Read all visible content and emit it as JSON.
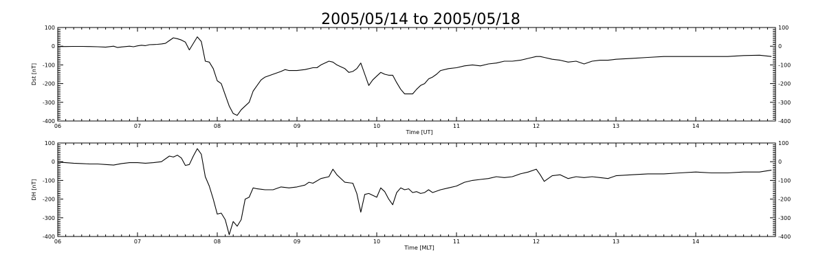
{
  "figure": {
    "title": "2005/05/14 to 2005/05/18"
  },
  "chart_data": [
    {
      "type": "line",
      "ylabel": "Dst [nT]",
      "xlabel": "Time [UT]",
      "x_tick_labels": [
        "06",
        "07",
        "08",
        "09",
        "10",
        "11",
        "12",
        "13",
        "14"
      ],
      "x_tick_values": [
        6,
        7,
        8,
        9,
        10,
        11,
        12,
        13,
        14
      ],
      "xlim": [
        6,
        15
      ],
      "ylim": [
        -400,
        100
      ],
      "y_ticks": [
        -400,
        -300,
        -200,
        -100,
        0,
        100
      ],
      "y_tick_labels": [
        "-400",
        "-300",
        "-200",
        "-100",
        "0",
        "100"
      ],
      "grid": false,
      "x": [
        6.0,
        6.1,
        6.2,
        6.3,
        6.4,
        6.5,
        6.6,
        6.7,
        6.75,
        6.8,
        6.9,
        6.95,
        7.0,
        7.05,
        7.1,
        7.15,
        7.2,
        7.25,
        7.3,
        7.35,
        7.4,
        7.45,
        7.5,
        7.55,
        7.6,
        7.65,
        7.7,
        7.75,
        7.8,
        7.85,
        7.9,
        7.95,
        8.0,
        8.05,
        8.1,
        8.15,
        8.2,
        8.25,
        8.3,
        8.35,
        8.4,
        8.45,
        8.5,
        8.55,
        8.6,
        8.7,
        8.8,
        8.85,
        8.9,
        9.0,
        9.1,
        9.2,
        9.25,
        9.3,
        9.4,
        9.45,
        9.5,
        9.55,
        9.6,
        9.65,
        9.7,
        9.75,
        9.8,
        9.85,
        9.9,
        9.95,
        10.0,
        10.05,
        10.1,
        10.15,
        10.2,
        10.25,
        10.3,
        10.35,
        10.4,
        10.45,
        10.5,
        10.55,
        10.6,
        10.65,
        10.7,
        10.75,
        10.8,
        10.9,
        11.0,
        11.1,
        11.2,
        11.3,
        11.4,
        11.5,
        11.6,
        11.7,
        11.8,
        11.9,
        12.0,
        12.05,
        12.1,
        12.2,
        12.3,
        12.4,
        12.5,
        12.6,
        12.7,
        12.8,
        12.9,
        13.0,
        13.2,
        13.4,
        13.6,
        13.8,
        14.0,
        14.2,
        14.4,
        14.6,
        14.8,
        14.95
      ],
      "y": [
        -2,
        -2,
        -1,
        -1,
        -2,
        -3,
        -5,
        0,
        -7,
        -4,
        0,
        -3,
        2,
        5,
        3,
        8,
        9,
        10,
        12,
        15,
        30,
        45,
        40,
        33,
        22,
        -20,
        15,
        50,
        25,
        -80,
        -85,
        -120,
        -185,
        -200,
        -260,
        -320,
        -360,
        -370,
        -340,
        -320,
        -300,
        -240,
        -210,
        -180,
        -165,
        -150,
        -135,
        -125,
        -130,
        -130,
        -125,
        -115,
        -115,
        -100,
        -80,
        -85,
        -100,
        -110,
        -120,
        -140,
        -135,
        -120,
        -90,
        -150,
        -210,
        -180,
        -160,
        -140,
        -150,
        -155,
        -155,
        -195,
        -230,
        -255,
        -255,
        -255,
        -230,
        -210,
        -200,
        -175,
        -165,
        -150,
        -130,
        -120,
        -115,
        -105,
        -100,
        -105,
        -95,
        -90,
        -80,
        -80,
        -75,
        -65,
        -55,
        -55,
        -60,
        -70,
        -75,
        -85,
        -80,
        -95,
        -80,
        -75,
        -75,
        -70,
        -65,
        -60,
        -55,
        -55,
        -55,
        -55,
        -55,
        -50,
        -48,
        -55
      ]
    },
    {
      "type": "line",
      "ylabel": "DH [nT]",
      "xlabel": "Time [MLT]",
      "x_tick_labels": [
        "06",
        "07",
        "08",
        "09",
        "10",
        "11",
        "12",
        "13",
        "14"
      ],
      "x_tick_values": [
        6,
        7,
        8,
        9,
        10,
        11,
        12,
        13,
        14
      ],
      "xlim": [
        6,
        15
      ],
      "ylim": [
        -400,
        100
      ],
      "y_ticks": [
        -400,
        -300,
        -200,
        -100,
        0,
        100
      ],
      "y_tick_labels": [
        "-400",
        "-300",
        "-200",
        "-100",
        "0",
        "100"
      ],
      "grid": false,
      "x": [
        6.0,
        6.1,
        6.2,
        6.3,
        6.4,
        6.5,
        6.6,
        6.7,
        6.8,
        6.9,
        7.0,
        7.1,
        7.2,
        7.3,
        7.4,
        7.45,
        7.5,
        7.55,
        7.6,
        7.65,
        7.7,
        7.75,
        7.8,
        7.85,
        7.9,
        7.95,
        8.0,
        8.05,
        8.1,
        8.15,
        8.2,
        8.25,
        8.3,
        8.35,
        8.4,
        8.45,
        8.5,
        8.6,
        8.7,
        8.8,
        8.9,
        9.0,
        9.1,
        9.15,
        9.2,
        9.3,
        9.4,
        9.45,
        9.5,
        9.6,
        9.7,
        9.75,
        9.8,
        9.85,
        9.9,
        10.0,
        10.05,
        10.1,
        10.15,
        10.2,
        10.25,
        10.3,
        10.35,
        10.4,
        10.45,
        10.5,
        10.55,
        10.6,
        10.65,
        10.7,
        10.8,
        10.9,
        11.0,
        11.1,
        11.2,
        11.3,
        11.4,
        11.5,
        11.6,
        11.7,
        11.8,
        11.9,
        12.0,
        12.05,
        12.1,
        12.2,
        12.3,
        12.4,
        12.5,
        12.6,
        12.7,
        12.8,
        12.9,
        13.0,
        13.2,
        13.4,
        13.6,
        13.8,
        14.0,
        14.2,
        14.4,
        14.6,
        14.8,
        14.95
      ],
      "y": [
        -2,
        -5,
        -8,
        -10,
        -12,
        -12,
        -15,
        -18,
        -10,
        -5,
        -5,
        -8,
        -5,
        0,
        30,
        25,
        35,
        20,
        -20,
        -15,
        30,
        70,
        40,
        -80,
        -130,
        -200,
        -280,
        -275,
        -310,
        -390,
        -320,
        -345,
        -310,
        -200,
        -190,
        -140,
        -145,
        -150,
        -150,
        -135,
        -140,
        -135,
        -125,
        -110,
        -115,
        -90,
        -80,
        -40,
        -70,
        -110,
        -115,
        -170,
        -270,
        -175,
        -170,
        -190,
        -140,
        -160,
        -200,
        -230,
        -165,
        -140,
        -150,
        -145,
        -165,
        -160,
        -170,
        -165,
        -150,
        -165,
        -150,
        -140,
        -130,
        -110,
        -100,
        -95,
        -90,
        -80,
        -85,
        -80,
        -65,
        -55,
        -40,
        -70,
        -105,
        -75,
        -70,
        -90,
        -80,
        -85,
        -80,
        -85,
        -90,
        -75,
        -70,
        -65,
        -65,
        -60,
        -55,
        -60,
        -60,
        -55,
        -55,
        -45
      ]
    }
  ]
}
